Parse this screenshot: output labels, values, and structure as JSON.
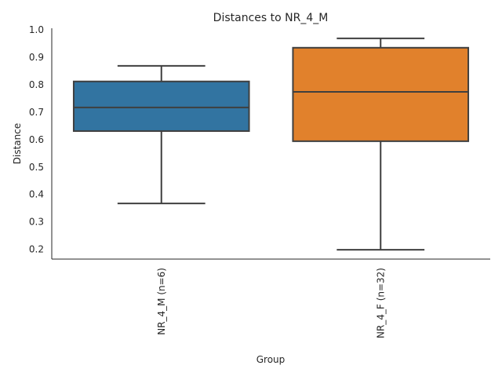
{
  "chart_data": {
    "type": "box",
    "title": "Distances to NR_4_M",
    "xlabel": "Group",
    "ylabel": "Distance",
    "ylim": [
      0.163,
      1.005
    ],
    "yticks": [
      "0.2",
      "0.3",
      "0.4",
      "0.5",
      "0.6",
      "0.7",
      "0.8",
      "0.9",
      "1.0"
    ],
    "grid": false,
    "categories": [
      "NR_4_M (n=6)",
      "NR_4_F (n=32)"
    ],
    "boxes": [
      {
        "name": "NR_4_M (n=6)",
        "whisker_low": 0.366,
        "q1": 0.63,
        "median": 0.716,
        "q3": 0.811,
        "whisker_high": 0.868,
        "color": "#3274a1"
      },
      {
        "name": "NR_4_F (n=32)",
        "whisker_low": 0.197,
        "q1": 0.593,
        "median": 0.773,
        "q3": 0.934,
        "whisker_high": 0.968,
        "color": "#e1812c"
      }
    ],
    "line_color": "#3f3f3f"
  }
}
